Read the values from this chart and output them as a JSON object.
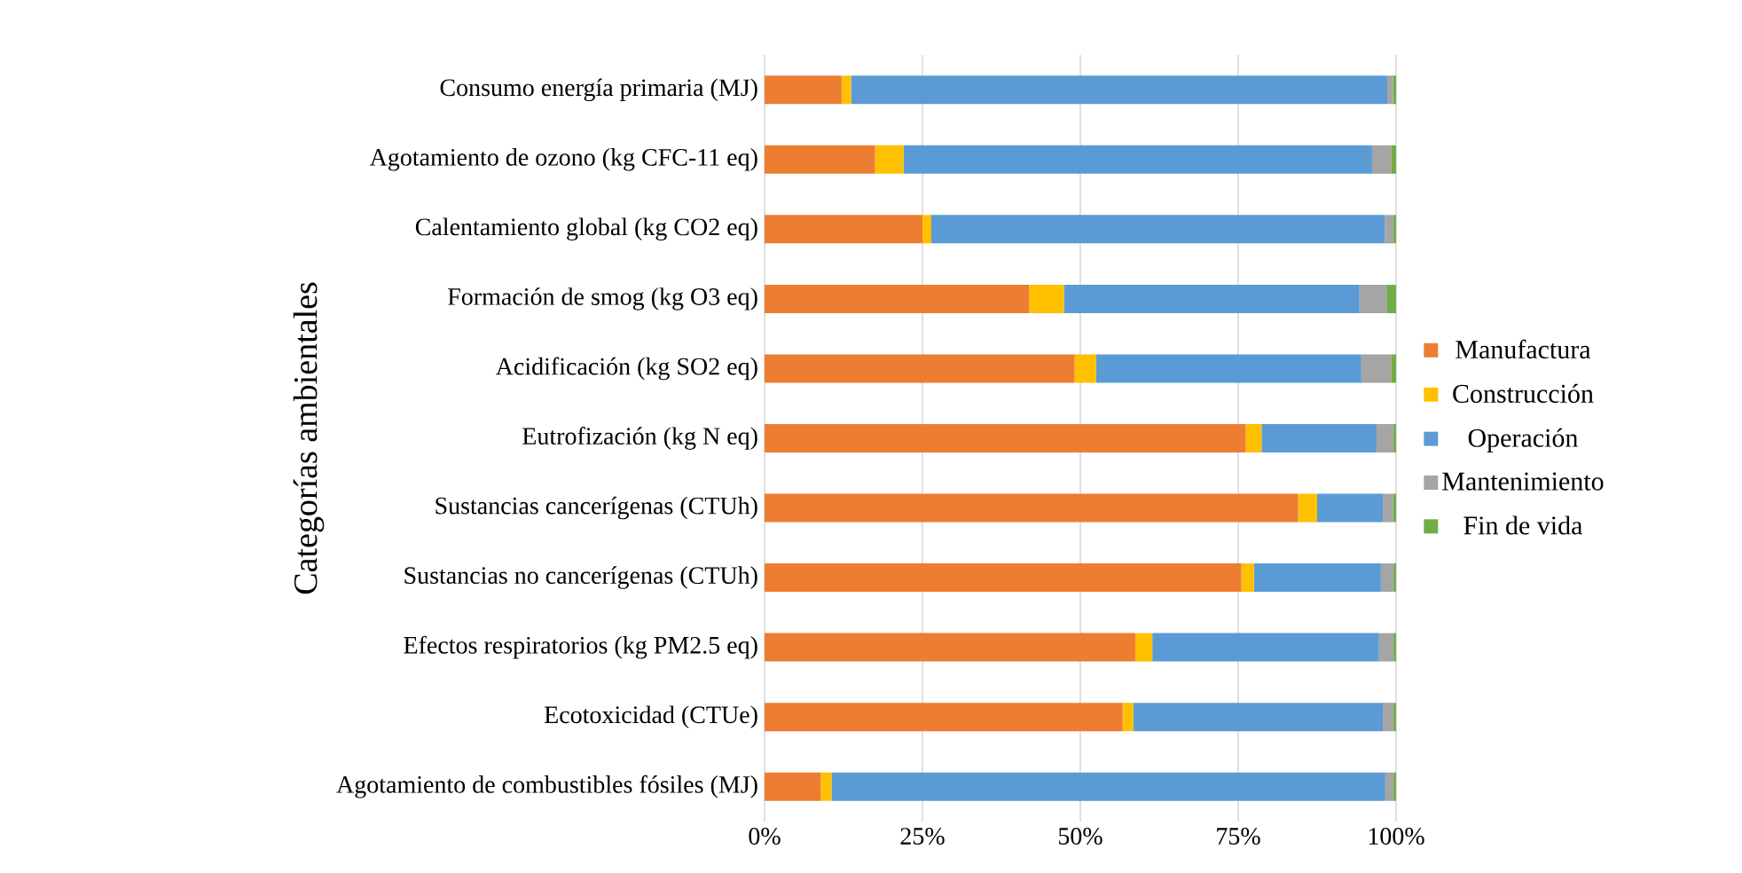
{
  "chart_data": {
    "type": "bar",
    "orientation": "horizontal",
    "stacked": true,
    "ylabel": "Categorías ambientales",
    "categories": [
      "Consumo energía primaria (MJ)",
      "Agotamiento de ozono (kg CFC-11 eq)",
      "Calentamiento global (kg CO2 eq)",
      "Formación de smog (kg O3 eq)",
      "Acidificación (kg SO2 eq)",
      "Eutrofización (kg N eq)",
      "Sustancias cancerígenas (CTUh)",
      "Sustancias no cancerígenas (CTUh)",
      "Efectos respiratorios (kg PM2.5 eq)",
      "Ecotoxicidad (CTUe)",
      "Agotamiento de combustibles fósiles (MJ)"
    ],
    "series": [
      {
        "name": "Manufactura",
        "color": "#ed7d31",
        "values": [
          12.2,
          17.5,
          25.0,
          41.9,
          49.1,
          76.2,
          84.5,
          75.5,
          58.7,
          56.7,
          8.9
        ]
      },
      {
        "name": "Construcción",
        "color": "#ffc000",
        "values": [
          1.5,
          4.5,
          1.4,
          5.5,
          3.4,
          2.5,
          3.0,
          2.0,
          2.7,
          1.7,
          1.7
        ]
      },
      {
        "name": "Operación",
        "color": "#5b9bd5",
        "values": [
          84.9,
          74.2,
          71.8,
          46.8,
          42.0,
          18.2,
          10.4,
          20.1,
          35.9,
          39.5,
          87.7
        ]
      },
      {
        "name": "Mantenimiento",
        "color": "#a5a5a5",
        "values": [
          0.9,
          3.0,
          1.4,
          4.4,
          4.7,
          2.7,
          1.6,
          2.0,
          2.3,
          1.7,
          1.3
        ]
      },
      {
        "name": "Fin de vida",
        "color": "#70ad47",
        "values": [
          0.5,
          0.8,
          0.4,
          1.4,
          0.8,
          0.4,
          0.5,
          0.4,
          0.4,
          0.4,
          0.4
        ]
      }
    ],
    "xlim": [
      0,
      100
    ],
    "xticks": [
      {
        "value": 0,
        "label": "0%"
      },
      {
        "value": 25,
        "label": "25%"
      },
      {
        "value": 50,
        "label": "50%"
      },
      {
        "value": 75,
        "label": "75%"
      },
      {
        "value": 100,
        "label": "100%"
      }
    ],
    "grid": "x",
    "legend": "right"
  }
}
